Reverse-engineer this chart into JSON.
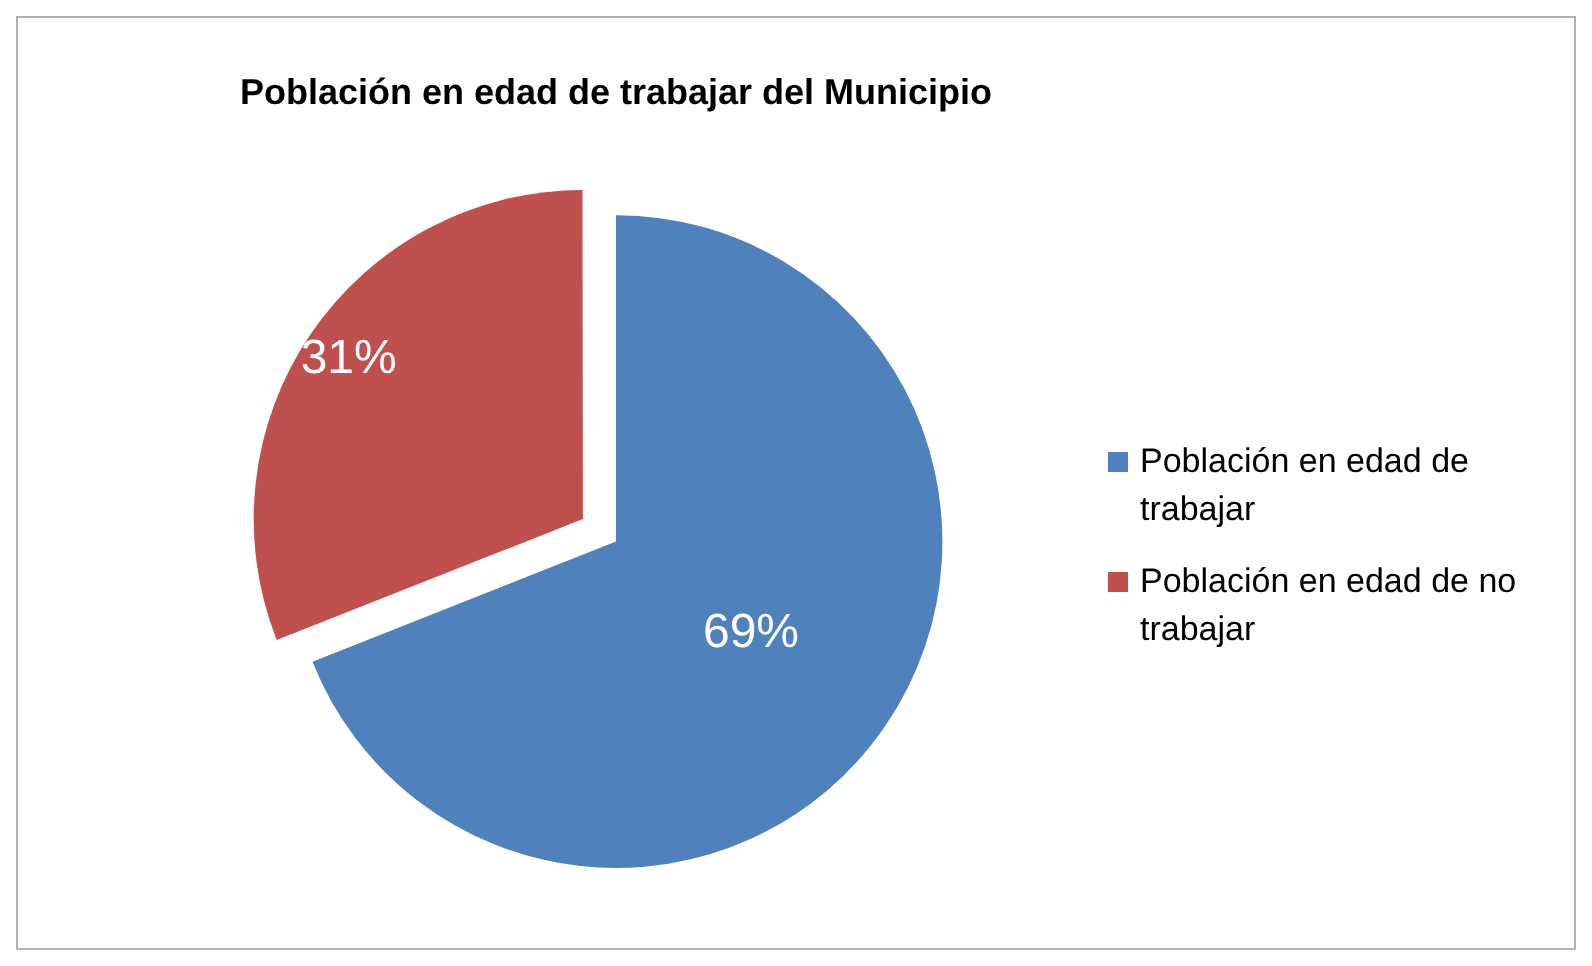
{
  "chart_data": {
    "type": "pie",
    "title": "Población en edad de trabajar del Municipio",
    "categories": [
      "Población en edad de trabajar",
      "Población en edad de no trabajar"
    ],
    "values": [
      69,
      31
    ],
    "colors": [
      "#4f81bd",
      "#c0504d"
    ],
    "value_labels": [
      "69%",
      "31%"
    ],
    "legend": "right"
  }
}
